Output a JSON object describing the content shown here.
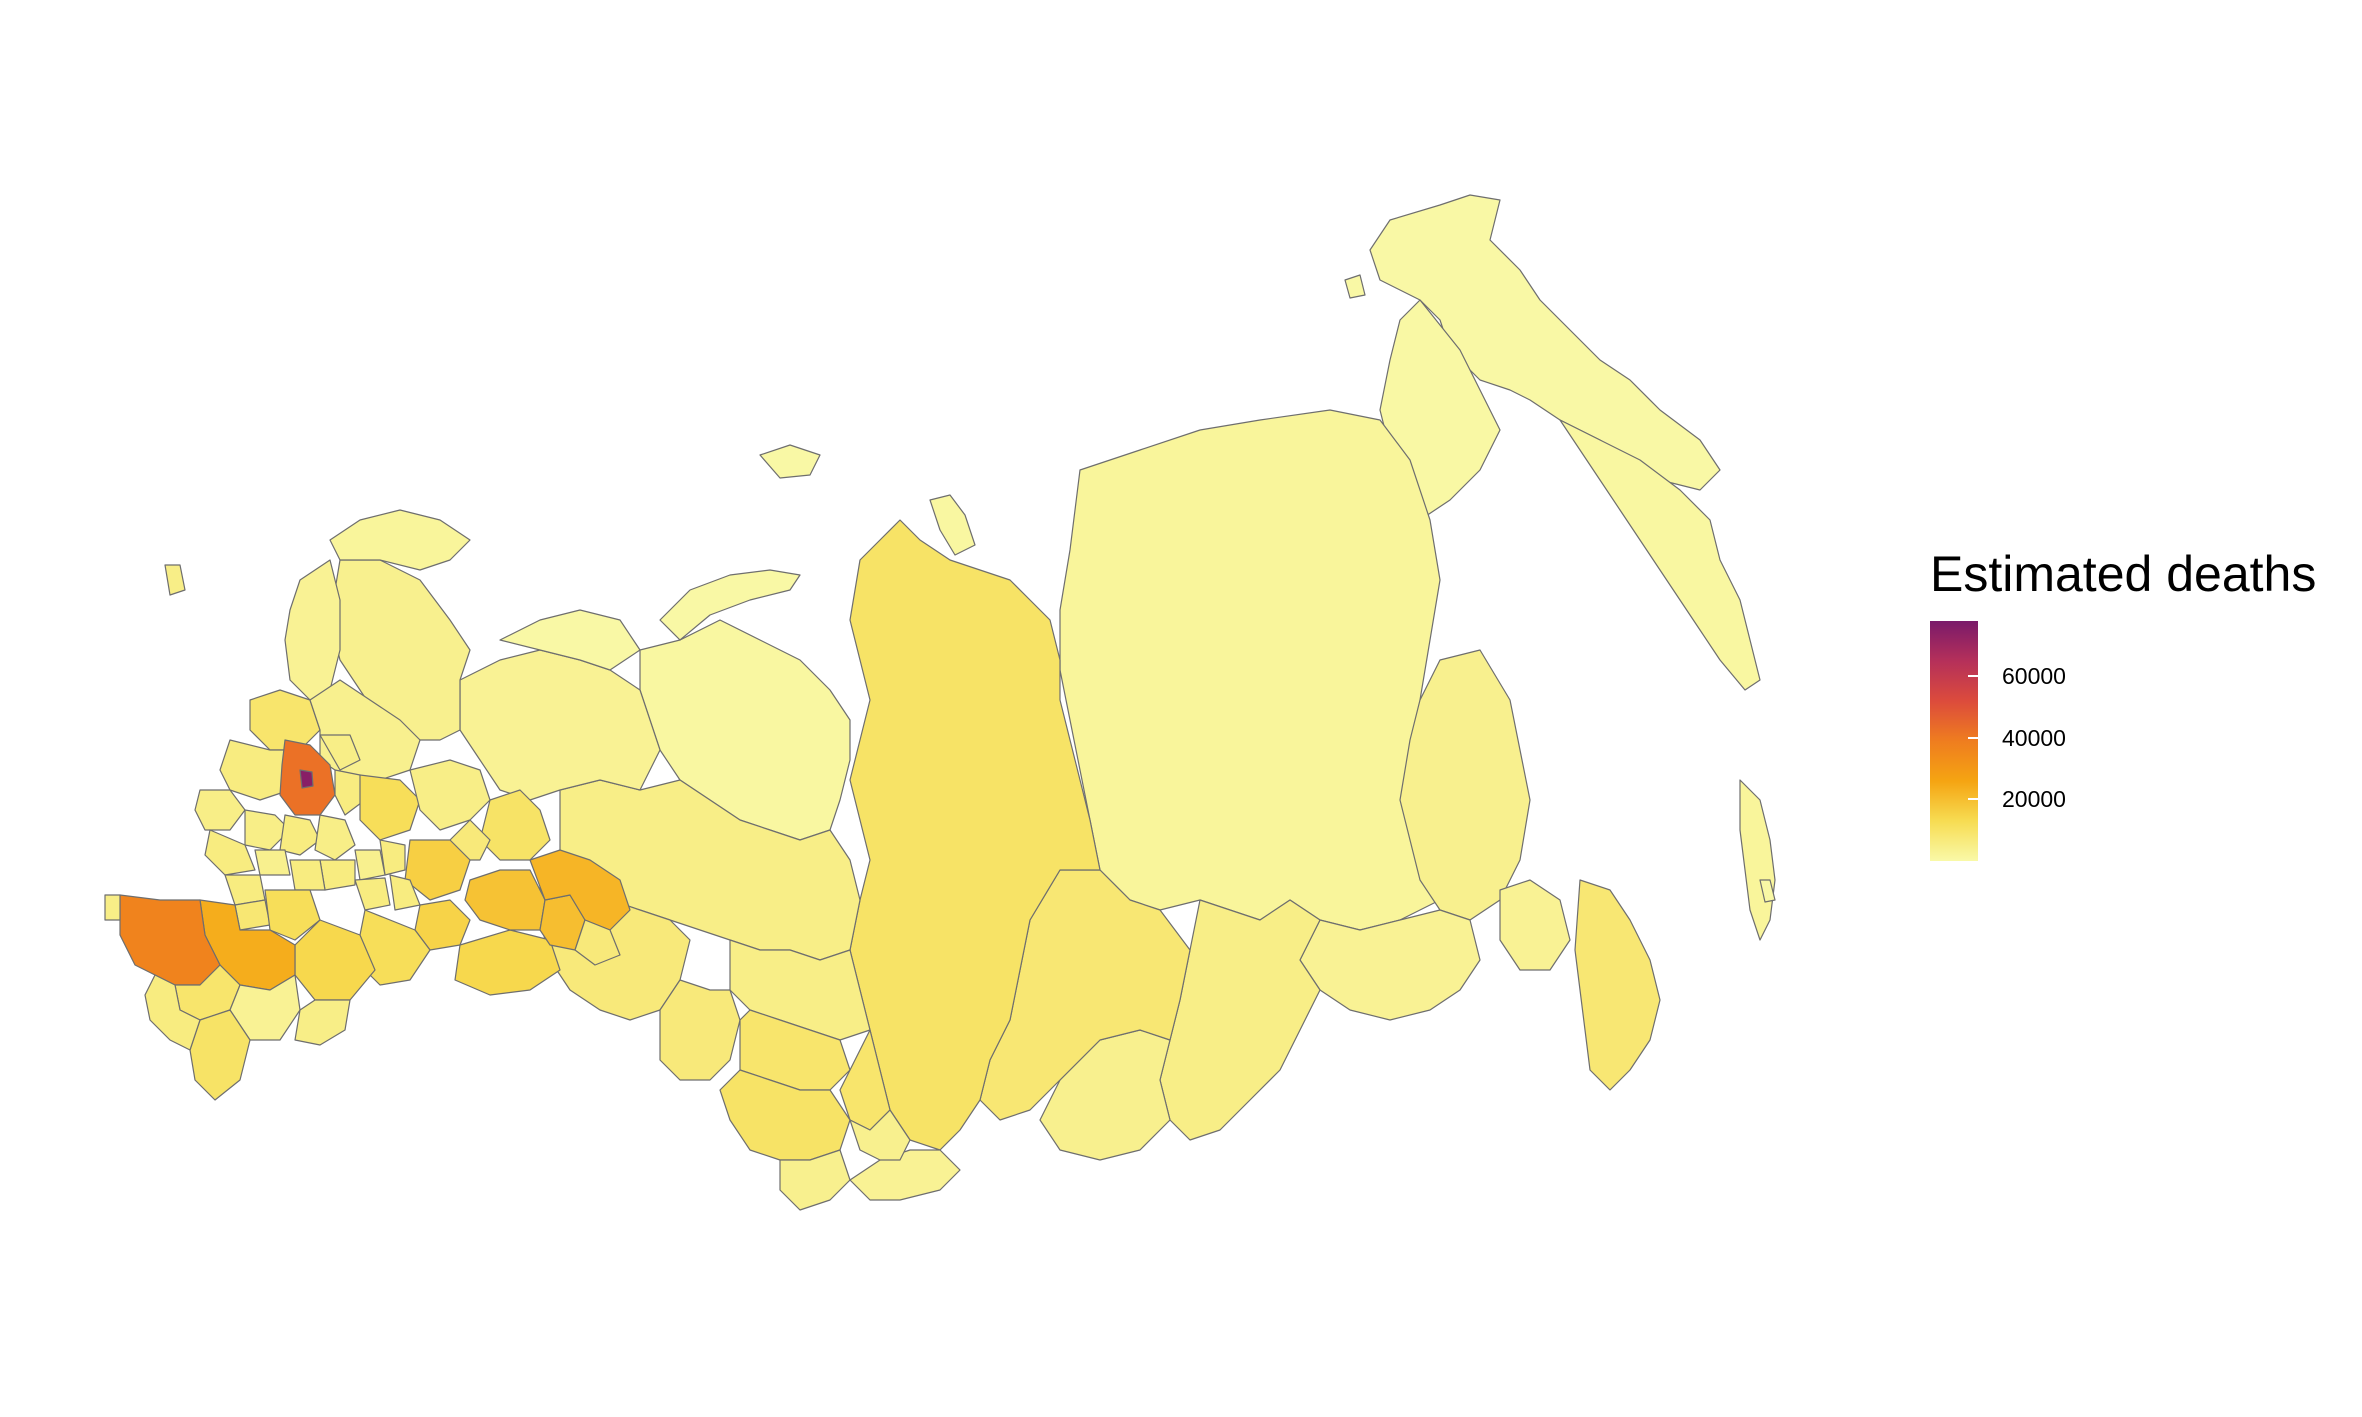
{
  "legend": {
    "title": "Estimated deaths",
    "scale_min": 0,
    "scale_max": 78000,
    "ticks": [
      {
        "value": 60000,
        "label": "60000"
      },
      {
        "value": 40000,
        "label": "40000"
      },
      {
        "value": 20000,
        "label": "20000"
      }
    ],
    "colors": [
      "#f9f9a8",
      "#f7dc52",
      "#f5a412",
      "#ef7d1f",
      "#dc4b3c",
      "#b5305a",
      "#7a1a6a"
    ]
  },
  "map": {
    "subject": "Russia by federal subject",
    "fill_values": {
      "moscow_city": 75000,
      "moscow_oblast": 42000,
      "krasnodar": 37000,
      "rostov": 24000,
      "sverdlovsk": 22000,
      "bashkortostan": 19000,
      "chelyabinsk": 20000,
      "tatarstan": 16000,
      "samara": 15000,
      "volgograd": 14000,
      "krasnoyarsk": 10000,
      "irkutsk": 8000,
      "novosibirsk": 9000,
      "altai_krai": 10000,
      "kemerovo": 9000,
      "omsk": 7000,
      "tyumen": 7000,
      "khmao": 5000,
      "primorsky": 8000,
      "khabarovsk": 4000,
      "yakutia": 2000,
      "yamal": 1000,
      "chukotka": 500,
      "kamchatka": 1000,
      "magadan": 600,
      "komi": 3000,
      "arkhangelsk": 4000,
      "nizhny_novgorod": 12000,
      "leningrad": 9000,
      "stavropol": 9000
    }
  }
}
